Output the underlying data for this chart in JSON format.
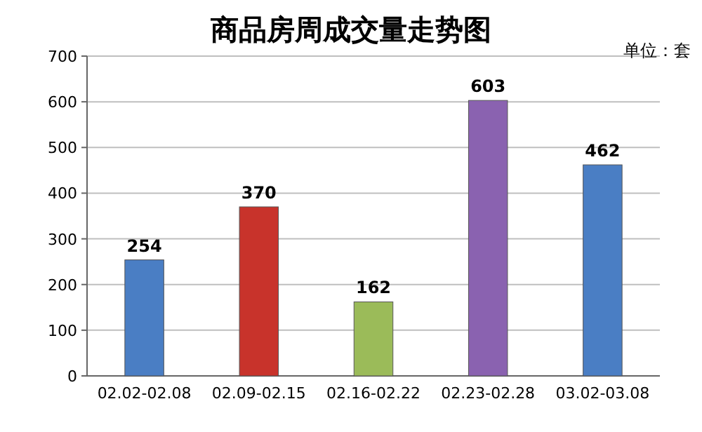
{
  "chart_data": {
    "type": "bar",
    "title": "商品房周成交量走势图",
    "annotations": [
      "单位：套"
    ],
    "categories": [
      "02.02-02.08",
      "02.09-02.15",
      "02.16-02.22",
      "02.23-02.28",
      "03.02-03.08"
    ],
    "values": [
      254,
      370,
      162,
      603,
      462
    ],
    "colors": [
      "#4a7ec4",
      "#c8332b",
      "#9bbb59",
      "#8a62b0",
      "#4a7ec4"
    ],
    "ylim": [
      0,
      700
    ],
    "yticks": [
      0,
      100,
      200,
      300,
      400,
      500,
      600,
      700
    ],
    "grid": "y",
    "data_labels": true
  }
}
